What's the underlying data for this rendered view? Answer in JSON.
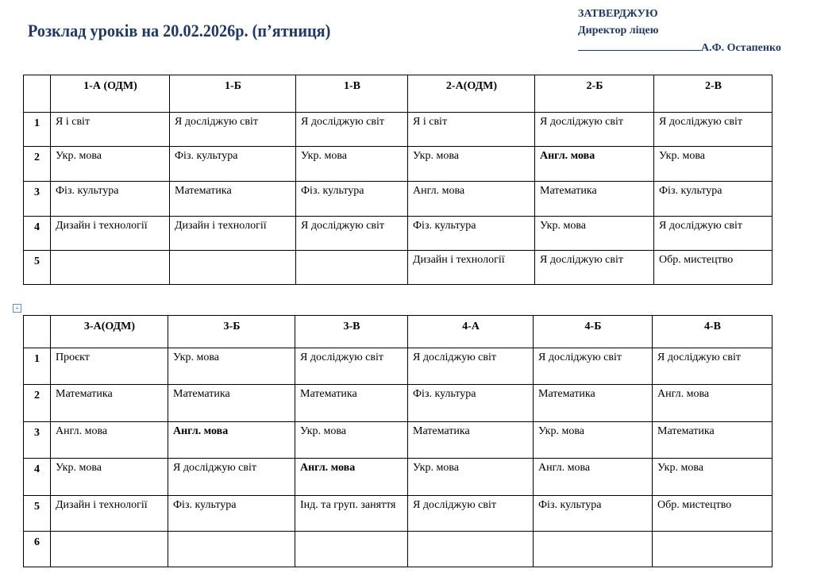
{
  "title": "Розклад уроків на 20.02.2026р. (п’ятниця)",
  "approval": {
    "line1": "ЗАТВЕРДЖУЮ",
    "line2": "Директор ліцею",
    "name": "А.Ф. Остапенко"
  },
  "tables": [
    {
      "headers": [
        "1-А (ОДМ)",
        "1-Б",
        "1-В",
        "2-А(ОДМ)",
        "2-Б",
        "2-В"
      ],
      "rows": [
        {
          "num": "1",
          "cells": [
            {
              "t": "Я і світ"
            },
            {
              "t": "Я досліджую світ"
            },
            {
              "t": "Я досліджую світ"
            },
            {
              "t": "Я і світ"
            },
            {
              "t": "Я досліджую світ"
            },
            {
              "t": "Я досліджую світ"
            }
          ]
        },
        {
          "num": "2",
          "cells": [
            {
              "t": "Укр. мова"
            },
            {
              "t": "Фіз. культура"
            },
            {
              "t": "Укр. мова"
            },
            {
              "t": "Укр. мова"
            },
            {
              "t": "Англ. мова",
              "bold": true
            },
            {
              "t": "Укр. мова"
            }
          ]
        },
        {
          "num": "3",
          "cells": [
            {
              "t": "Фіз. культура"
            },
            {
              "t": "Математика"
            },
            {
              "t": "Фіз. культура"
            },
            {
              "t": "Англ. мова"
            },
            {
              "t": "Математика"
            },
            {
              "t": "Фіз. культура"
            }
          ]
        },
        {
          "num": "4",
          "cells": [
            {
              "t": "Дизайн і технології"
            },
            {
              "t": "Дизайн і технології"
            },
            {
              "t": "Я досліджую світ"
            },
            {
              "t": "Фіз. культура"
            },
            {
              "t": "Укр. мова"
            },
            {
              "t": "Я досліджую світ"
            }
          ]
        },
        {
          "num": "5",
          "cells": [
            {
              "t": ""
            },
            {
              "t": ""
            },
            {
              "t": ""
            },
            {
              "t": "Дизайн і технології"
            },
            {
              "t": "Я досліджую світ"
            },
            {
              "t": "Обр. мистецтво"
            }
          ]
        }
      ]
    },
    {
      "headers": [
        "3-А(ОДМ)",
        "3-Б",
        "3-В",
        "4-А",
        "4-Б",
        "4-В"
      ],
      "rows": [
        {
          "num": "1",
          "cells": [
            {
              "t": "Проєкт"
            },
            {
              "t": "Укр. мова"
            },
            {
              "t": "Я досліджую світ"
            },
            {
              "t": "Я досліджую світ"
            },
            {
              "t": "Я досліджую світ"
            },
            {
              "t": "Я досліджую світ"
            }
          ]
        },
        {
          "num": "2",
          "cells": [
            {
              "t": "Математика"
            },
            {
              "t": "Математика"
            },
            {
              "t": "Математика"
            },
            {
              "t": "Фіз. культура"
            },
            {
              "t": "Математика"
            },
            {
              "t": "Англ. мова"
            }
          ]
        },
        {
          "num": "3",
          "cells": [
            {
              "t": "Англ. мова"
            },
            {
              "t": "Англ. мова",
              "bold": true
            },
            {
              "t": "Укр. мова"
            },
            {
              "t": "Математика"
            },
            {
              "t": "Укр. мова"
            },
            {
              "t": "Математика"
            }
          ]
        },
        {
          "num": "4",
          "cells": [
            {
              "t": "Укр. мова"
            },
            {
              "t": "Я досліджую світ"
            },
            {
              "t": "Англ. мова",
              "bold": true
            },
            {
              "t": "Укр. мова"
            },
            {
              "t": "Англ. мова"
            },
            {
              "t": "Укр. мова"
            }
          ]
        },
        {
          "num": "5",
          "cells": [
            {
              "t": "Дизайн і технології"
            },
            {
              "t": "Фіз. культура"
            },
            {
              "t": "Інд. та груп. заняття"
            },
            {
              "t": "Я досліджую світ"
            },
            {
              "t": "Фіз. культура"
            },
            {
              "t": "Обр. мистецтво"
            }
          ]
        },
        {
          "num": "6",
          "cells": [
            {
              "t": ""
            },
            {
              "t": ""
            },
            {
              "t": ""
            },
            {
              "t": ""
            },
            {
              "t": ""
            },
            {
              "t": ""
            }
          ]
        }
      ]
    }
  ]
}
